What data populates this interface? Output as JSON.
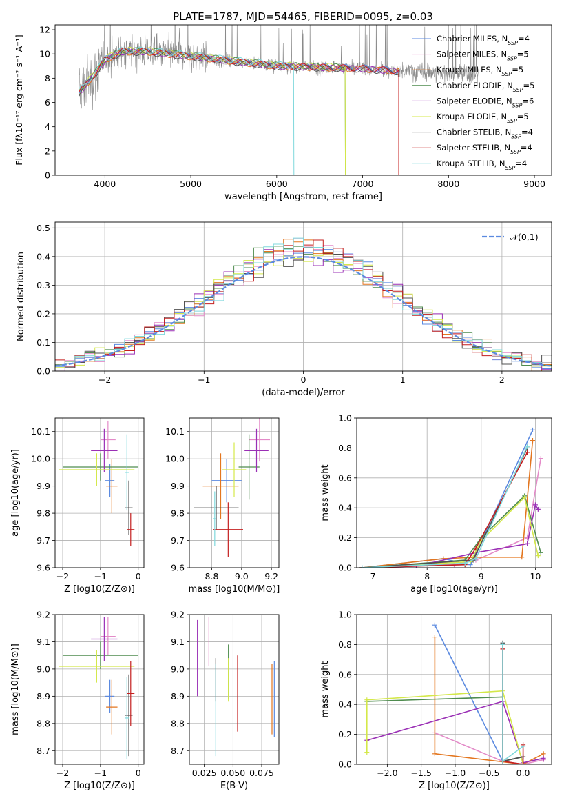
{
  "figure": {
    "title": "PLATE=1787, MJD=54465, FIBERID=0095, z=0.03"
  },
  "colors": {
    "chabrier_miles": "#5b8ae0",
    "salpeter_miles": "#e38bc8",
    "kroupa_miles": "#e3761f",
    "chabrier_elodie": "#4f8c4f",
    "salpeter_elodie": "#9a2fb5",
    "kroupa_elodie": "#d4e84a",
    "chabrier_stelib": "#505050",
    "salpeter_stelib": "#c41f1f",
    "kroupa_stelib": "#7fd8dc",
    "data": "#8a8a8a"
  },
  "legend_labels": [
    "Chabrier MILES, N_SSP=4",
    "Salpeter MILES, N_SSP=5",
    "Kroupa MILES, N_SSP=5",
    "Chabrier ELODIE, N_SSP=5",
    "Salpeter ELODIE, N_SSP=6",
    "Kroupa ELODIE, N_SSP=5",
    "Chabrier STELIB, N_SSP=4",
    "Salpeter STELIB, N_SSP=4",
    "Kroupa STELIB, N_SSP=4"
  ],
  "chart_data": [
    {
      "id": "spectrum",
      "type": "line",
      "xlabel": "wavelength [Angstrom, rest frame]",
      "ylabel": "Flux [fλ10⁻¹⁷ erg cm⁻² s⁻¹ A⁻¹]",
      "xlim": [
        3420,
        9200
      ],
      "ylim": [
        0,
        12.4
      ],
      "xticks": [
        4000,
        5000,
        6000,
        7000,
        8000,
        9000
      ],
      "yticks": [
        0,
        2,
        4,
        6,
        8,
        10,
        12
      ],
      "grid": false,
      "legend": "top-right",
      "continuum_points": [
        [
          3700,
          6.8
        ],
        [
          3900,
          8.5
        ],
        [
          4000,
          9.5
        ],
        [
          4200,
          10.2
        ],
        [
          4500,
          10.2
        ],
        [
          5000,
          9.8
        ],
        [
          5500,
          9.4
        ],
        [
          6000,
          9.0
        ],
        [
          6500,
          8.9
        ],
        [
          7000,
          8.8
        ],
        [
          7400,
          8.6
        ]
      ],
      "data_range": [
        3700,
        8350
      ],
      "model_ranges": [
        [
          3700,
          7420
        ],
        [
          3700,
          7420
        ],
        [
          3700,
          7420
        ],
        [
          3700,
          6800
        ],
        [
          3700,
          7420
        ],
        [
          3700,
          6800
        ],
        [
          3700,
          7420
        ],
        [
          3700,
          7420
        ],
        [
          3700,
          6200
        ]
      ],
      "model_offsets": [
        0.05,
        0.0,
        -0.05,
        0.08,
        -0.03,
        0.1,
        -0.08,
        0.02,
        0.12
      ]
    },
    {
      "id": "residuals",
      "type": "line",
      "xlabel": "(data-model)/error",
      "ylabel": "Normed distribution",
      "xlim": [
        -2.5,
        2.5
      ],
      "ylim": [
        0,
        0.52
      ],
      "xticks": [
        -2,
        -1,
        0,
        1,
        2
      ],
      "yticks": [
        0.0,
        0.1,
        0.2,
        0.3,
        0.4,
        0.5
      ],
      "grid": true,
      "legend": "top-right",
      "legend_label": "𝒩(0,1)",
      "bin_width": 0.1
    },
    {
      "id": "age_vs_Z",
      "type": "scatter",
      "xlabel": "Z [log10(Z/Z⊙)]",
      "ylabel": "age  [log10(age/yr)]",
      "xlim": [
        -2.2,
        0.15
      ],
      "ylim": [
        9.6,
        10.15
      ],
      "xticks": [
        -2,
        -1,
        0
      ],
      "yticks": [
        9.6,
        9.7,
        9.8,
        9.9,
        10.0,
        10.1
      ],
      "grid": true,
      "points": [
        {
          "x": -0.75,
          "y": 9.92,
          "xerr": 0.12,
          "yerr": 0.06
        },
        {
          "x": -0.8,
          "y": 10.07,
          "xerr": 0.2,
          "yerr": 0.07
        },
        {
          "x": -0.7,
          "y": 9.9,
          "xerr": 0.15,
          "yerr": 0.1
        },
        {
          "x": -1.0,
          "y": 9.97,
          "xerr": 1.0,
          "yerr": 0.05
        },
        {
          "x": -0.9,
          "y": 10.03,
          "xerr": 0.35,
          "yerr": 0.08
        },
        {
          "x": -1.1,
          "y": 9.96,
          "xerr": 1.0,
          "yerr": 0.06
        },
        {
          "x": -0.25,
          "y": 9.82,
          "xerr": 0.1,
          "yerr": 0.1
        },
        {
          "x": -0.2,
          "y": 9.74,
          "xerr": 0.1,
          "yerr": 0.06
        },
        {
          "x": -0.3,
          "y": 9.95,
          "xerr": 0.05,
          "yerr": 0.14
        }
      ]
    },
    {
      "id": "age_vs_mass",
      "type": "scatter",
      "xlabel": "mass [log10(M/M⊙)]",
      "ylabel": "",
      "xlim": [
        8.65,
        9.25
      ],
      "ylim": [
        9.6,
        10.15
      ],
      "xticks": [
        8.8,
        9.0,
        9.2
      ],
      "yticks": [
        9.6,
        9.7,
        9.8,
        9.9,
        10.0,
        10.1
      ],
      "grid": true,
      "points": [
        {
          "x": 8.9,
          "y": 9.92,
          "xerr": 0.1,
          "yerr": 0.08
        },
        {
          "x": 9.12,
          "y": 10.07,
          "xerr": 0.07,
          "yerr": 0.08
        },
        {
          "x": 8.86,
          "y": 9.9,
          "xerr": 0.12,
          "yerr": 0.12
        },
        {
          "x": 9.05,
          "y": 9.97,
          "xerr": 0.07,
          "yerr": 0.12
        },
        {
          "x": 9.1,
          "y": 10.03,
          "xerr": 0.08,
          "yerr": 0.08
        },
        {
          "x": 8.95,
          "y": 9.96,
          "xerr": 0.08,
          "yerr": 0.1
        },
        {
          "x": 8.83,
          "y": 9.82,
          "xerr": 0.15,
          "yerr": 0.08
        },
        {
          "x": 8.91,
          "y": 9.74,
          "xerr": 0.1,
          "yerr": 0.1
        },
        {
          "x": 8.82,
          "y": 9.78,
          "xerr": 0.01,
          "yerr": 0.1
        }
      ]
    },
    {
      "id": "weight_vs_age",
      "type": "line",
      "xlabel": "age  [log10(age/yr)]",
      "ylabel": "mass weight",
      "xlim": [
        6.7,
        10.3
      ],
      "ylim": [
        0,
        1
      ],
      "xticks": [
        7,
        8,
        9,
        10
      ],
      "yticks": [
        0.0,
        0.2,
        0.4,
        0.6,
        0.8,
        1.0
      ],
      "grid": true,
      "series": [
        {
          "x": [
            6.8,
            8.3,
            8.8,
            9.95
          ],
          "y": [
            0.0,
            0.06,
            0.02,
            0.92
          ]
        },
        {
          "x": [
            6.8,
            8.5,
            8.9,
            9.85,
            10.1
          ],
          "y": [
            0.0,
            0.02,
            0.05,
            0.2,
            0.73
          ]
        },
        {
          "x": [
            6.8,
            8.3,
            8.9,
            9.75,
            9.95
          ],
          "y": [
            0.0,
            0.06,
            0.07,
            0.07,
            0.85
          ]
        },
        {
          "x": [
            6.8,
            8.7,
            9.0,
            9.8,
            10.1
          ],
          "y": [
            0.0,
            0.05,
            0.2,
            0.48,
            0.1
          ]
        },
        {
          "x": [
            6.8,
            7.8,
            8.9,
            9.85,
            10.0,
            10.05
          ],
          "y": [
            0.0,
            0.01,
            0.1,
            0.16,
            0.42,
            0.39
          ]
        },
        {
          "x": [
            6.8,
            8.8,
            9.0,
            9.8,
            10.05
          ],
          "y": [
            0.0,
            0.04,
            0.18,
            0.47,
            0.08
          ]
        },
        {
          "x": [
            6.8,
            8.85,
            9.85
          ],
          "y": [
            0.0,
            0.05,
            0.8
          ]
        },
        {
          "x": [
            6.8,
            8.7,
            8.9,
            9.85
          ],
          "y": [
            0.0,
            0.02,
            0.13,
            0.77
          ]
        },
        {
          "x": [
            6.8,
            8.7,
            8.9,
            9.85
          ],
          "y": [
            0.0,
            0.03,
            0.06,
            0.81
          ]
        }
      ]
    },
    {
      "id": "mass_vs_Z",
      "type": "scatter",
      "xlabel": "Z [log10(Z/Z⊙)]",
      "ylabel": "mass [log10(M/M⊙)]",
      "xlim": [
        -2.2,
        0.15
      ],
      "ylim": [
        8.65,
        9.2
      ],
      "xticks": [
        -2,
        -1,
        0
      ],
      "yticks": [
        8.7,
        8.8,
        8.9,
        9.0,
        9.1,
        9.2
      ],
      "grid": true,
      "points": [
        {
          "x": -0.75,
          "y": 8.9,
          "xerr": 0.12,
          "yerr": 0.06
        },
        {
          "x": -0.8,
          "y": 9.12,
          "xerr": 0.2,
          "yerr": 0.07
        },
        {
          "x": -0.7,
          "y": 8.86,
          "xerr": 0.15,
          "yerr": 0.1
        },
        {
          "x": -1.0,
          "y": 9.05,
          "xerr": 1.0,
          "yerr": 0.05
        },
        {
          "x": -0.9,
          "y": 9.11,
          "xerr": 0.35,
          "yerr": 0.08
        },
        {
          "x": -1.1,
          "y": 9.01,
          "xerr": 1.0,
          "yerr": 0.06
        },
        {
          "x": -0.25,
          "y": 8.83,
          "xerr": 0.1,
          "yerr": 0.15
        },
        {
          "x": -0.2,
          "y": 8.91,
          "xerr": 0.1,
          "yerr": 0.12
        },
        {
          "x": -0.3,
          "y": 8.82,
          "xerr": 0.05,
          "yerr": 0.15
        }
      ]
    },
    {
      "id": "mass_vs_ebv",
      "type": "scatter",
      "xlabel": "E(B-V)",
      "ylabel": "",
      "xlim": [
        0.012,
        0.09
      ],
      "ylim": [
        8.65,
        9.2
      ],
      "xticks": [
        0.025,
        0.05,
        0.075
      ],
      "yticks": [
        8.7,
        8.8,
        8.9,
        9.0,
        9.1,
        9.2
      ],
      "grid": true,
      "points": [
        {
          "x": 0.086,
          "y": 8.89,
          "xerr": 0.0,
          "yerr": 0.14
        },
        {
          "x": 0.029,
          "y": 9.1,
          "xerr": 0.0,
          "yerr": 0.09
        },
        {
          "x": 0.084,
          "y": 8.89,
          "xerr": 0.0,
          "yerr": 0.13
        },
        {
          "x": 0.046,
          "y": 8.99,
          "xerr": 0.0,
          "yerr": 0.1
        },
        {
          "x": 0.019,
          "y": 9.04,
          "xerr": 0.0,
          "yerr": 0.14
        },
        {
          "x": 0.046,
          "y": 8.96,
          "xerr": 0.0,
          "yerr": 0.08
        },
        {
          "x": 0.035,
          "y": 8.96,
          "xerr": 0.0,
          "yerr": 0.08
        },
        {
          "x": 0.054,
          "y": 8.91,
          "xerr": 0.0,
          "yerr": 0.14
        },
        {
          "x": 0.035,
          "y": 8.85,
          "xerr": 0.0,
          "yerr": 0.17
        }
      ]
    },
    {
      "id": "weight_vs_Z",
      "type": "line",
      "xlabel": "Z [log10(Z/Z⊙)]",
      "ylabel": "mass weight",
      "xlim": [
        -2.45,
        0.42
      ],
      "ylim": [
        0,
        1
      ],
      "xticks": [
        -2.0,
        -1.5,
        -1.0,
        -0.5,
        0.0
      ],
      "yticks": [
        0.0,
        0.2,
        0.4,
        0.6,
        0.8,
        1.0
      ],
      "grid": true,
      "series": [
        {
          "x": [
            -1.3,
            -0.3,
            0.0
          ],
          "y": [
            0.93,
            0.02,
            0.05
          ]
        },
        {
          "x": [
            -1.3,
            -0.3,
            0.0,
            0.3
          ],
          "y": [
            0.21,
            0.02,
            0.0,
            0.03
          ]
        },
        {
          "x": [
            -1.3,
            -1.3,
            0.0,
            0.3
          ],
          "y": [
            0.85,
            0.07,
            0.0,
            0.07
          ]
        },
        {
          "x": [
            -2.3,
            -0.3,
            -0.3,
            0.0
          ],
          "y": [
            0.42,
            0.45,
            0.02,
            0.05
          ]
        },
        {
          "x": [
            -2.3,
            -0.3,
            0.0,
            0.3
          ],
          "y": [
            0.16,
            0.42,
            0.01,
            0.04
          ]
        },
        {
          "x": [
            -2.3,
            -2.3,
            -0.3,
            0.0
          ],
          "y": [
            0.08,
            0.43,
            0.49,
            0.0
          ]
        },
        {
          "x": [
            -0.3,
            -0.3,
            0.0
          ],
          "y": [
            0.81,
            0.02,
            0.05
          ]
        },
        {
          "x": [
            -0.3,
            -0.3,
            0.0,
            0.0
          ],
          "y": [
            0.77,
            0.02,
            0.0,
            0.13
          ]
        },
        {
          "x": [
            -0.3,
            -0.3,
            0.0
          ],
          "y": [
            0.8,
            0.02,
            0.12
          ]
        }
      ]
    }
  ]
}
